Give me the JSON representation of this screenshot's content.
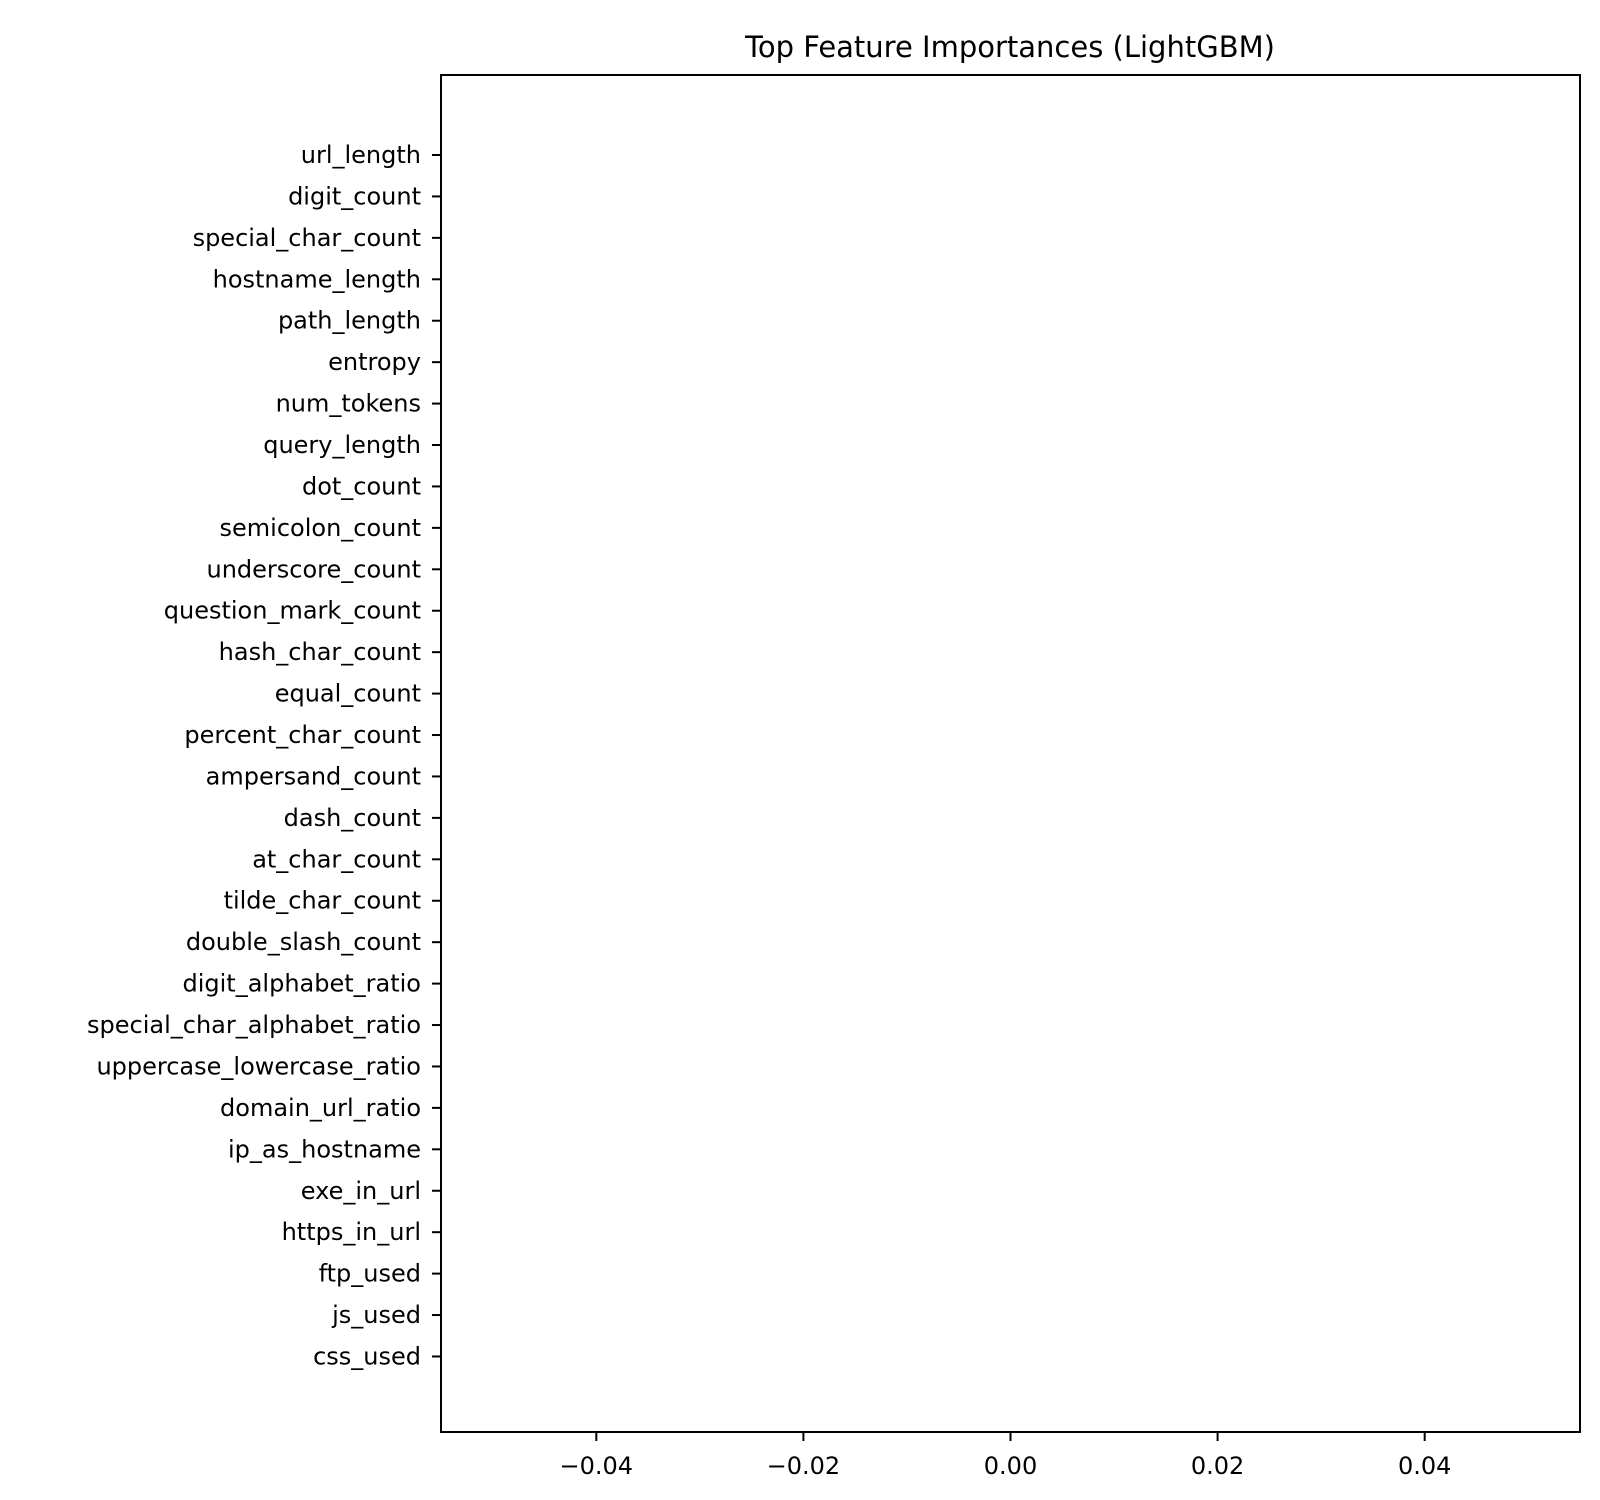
{
  "chart_data": {
    "type": "bar",
    "orientation": "horizontal",
    "title": "Top Feature Importances (LightGBM)",
    "xlabel": "",
    "ylabel": "",
    "categories": [
      "url_length",
      "digit_count",
      "special_char_count",
      "hostname_length",
      "path_length",
      "entropy",
      "num_tokens",
      "query_length",
      "dot_count",
      "semicolon_count",
      "underscore_count",
      "question_mark_count",
      "hash_char_count",
      "equal_count",
      "percent_char_count",
      "ampersand_count",
      "dash_count",
      "at_char_count",
      "tilde_char_count",
      "double_slash_count",
      "digit_alphabet_ratio",
      "special_char_alphabet_ratio",
      "uppercase_lowercase_ratio",
      "domain_url_ratio",
      "ip_as_hostname",
      "exe_in_url",
      "https_in_url",
      "ftp_used",
      "js_used",
      "css_used"
    ],
    "values": [
      0,
      0,
      0,
      0,
      0,
      0,
      0,
      0,
      0,
      0,
      0,
      0,
      0,
      0,
      0,
      0,
      0,
      0,
      0,
      0,
      0,
      0,
      0,
      0,
      0,
      0,
      0,
      0,
      0,
      0
    ],
    "xlim": [
      -0.055,
      0.055
    ],
    "xticks": [
      -0.04,
      -0.02,
      0.0,
      0.02,
      0.04
    ],
    "xtick_labels": [
      "−0.04",
      "−0.02",
      "0.00",
      "0.02",
      "0.04"
    ],
    "grid": false,
    "legend": "none"
  }
}
